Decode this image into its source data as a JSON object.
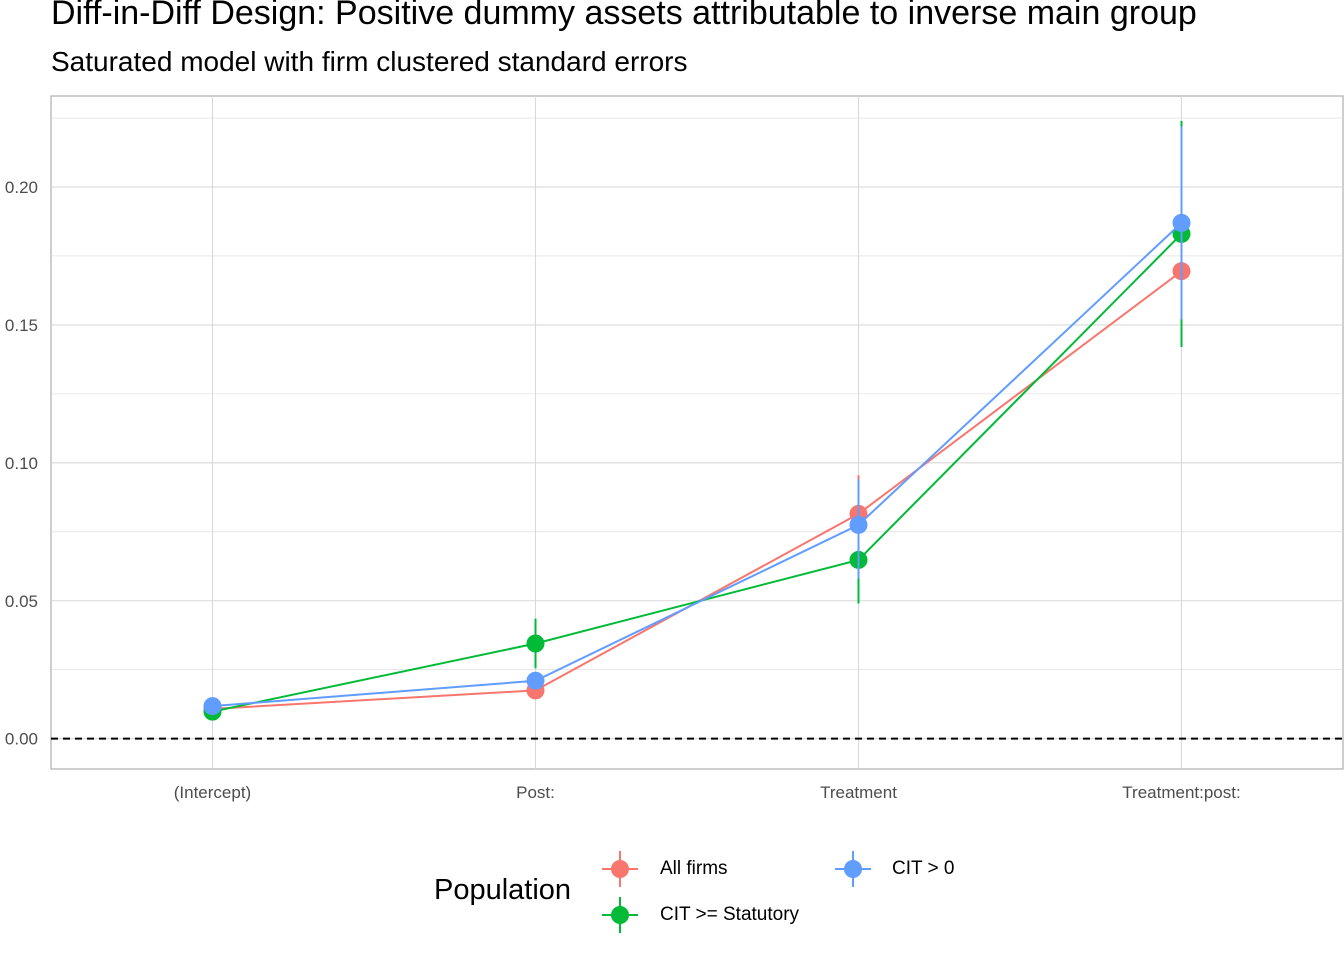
{
  "chart_data": {
    "type": "scatter",
    "title": "Diff-in-Diff Design: Positive dummy assets attributable to inverse main group",
    "subtitle": "Saturated model with firm clustered standard errors",
    "xlabel": "",
    "ylabel": "",
    "categories": [
      "(Intercept)",
      "Post:",
      "Treatment",
      "Treatment:post:"
    ],
    "ylim": [
      -0.011,
      0.233
    ],
    "y_ticks": [
      0.0,
      0.05,
      0.1,
      0.15,
      0.2
    ],
    "y_tick_labels": [
      "0.00",
      "0.05",
      "0.10",
      "0.15",
      "0.20"
    ],
    "reference_line": {
      "y": 0.0,
      "style": "dashed"
    },
    "grid": true,
    "legend": {
      "title": "Population",
      "position": "bottom"
    },
    "series": [
      {
        "name": "All firms",
        "color": "#F8766D",
        "values": [
          0.0108,
          0.0175,
          0.0815,
          0.1695
        ],
        "lower": [
          0.0098,
          0.0148,
          0.0675,
          0.1515
        ],
        "upper": [
          0.0118,
          0.0202,
          0.0955,
          0.1875
        ]
      },
      {
        "name": "CIT >= Statutory",
        "color": "#00BA38",
        "values": [
          0.0098,
          0.0345,
          0.0648,
          0.183
        ],
        "lower": [
          0.0078,
          0.0255,
          0.049,
          0.142
        ],
        "upper": [
          0.0118,
          0.0435,
          0.0806,
          0.224
        ]
      },
      {
        "name": "CIT > 0",
        "color": "#619CFF",
        "values": [
          0.0118,
          0.021,
          0.0775,
          0.187
        ],
        "lower": [
          0.0108,
          0.018,
          0.058,
          0.152
        ],
        "upper": [
          0.0128,
          0.024,
          0.094,
          0.222
        ]
      }
    ]
  }
}
